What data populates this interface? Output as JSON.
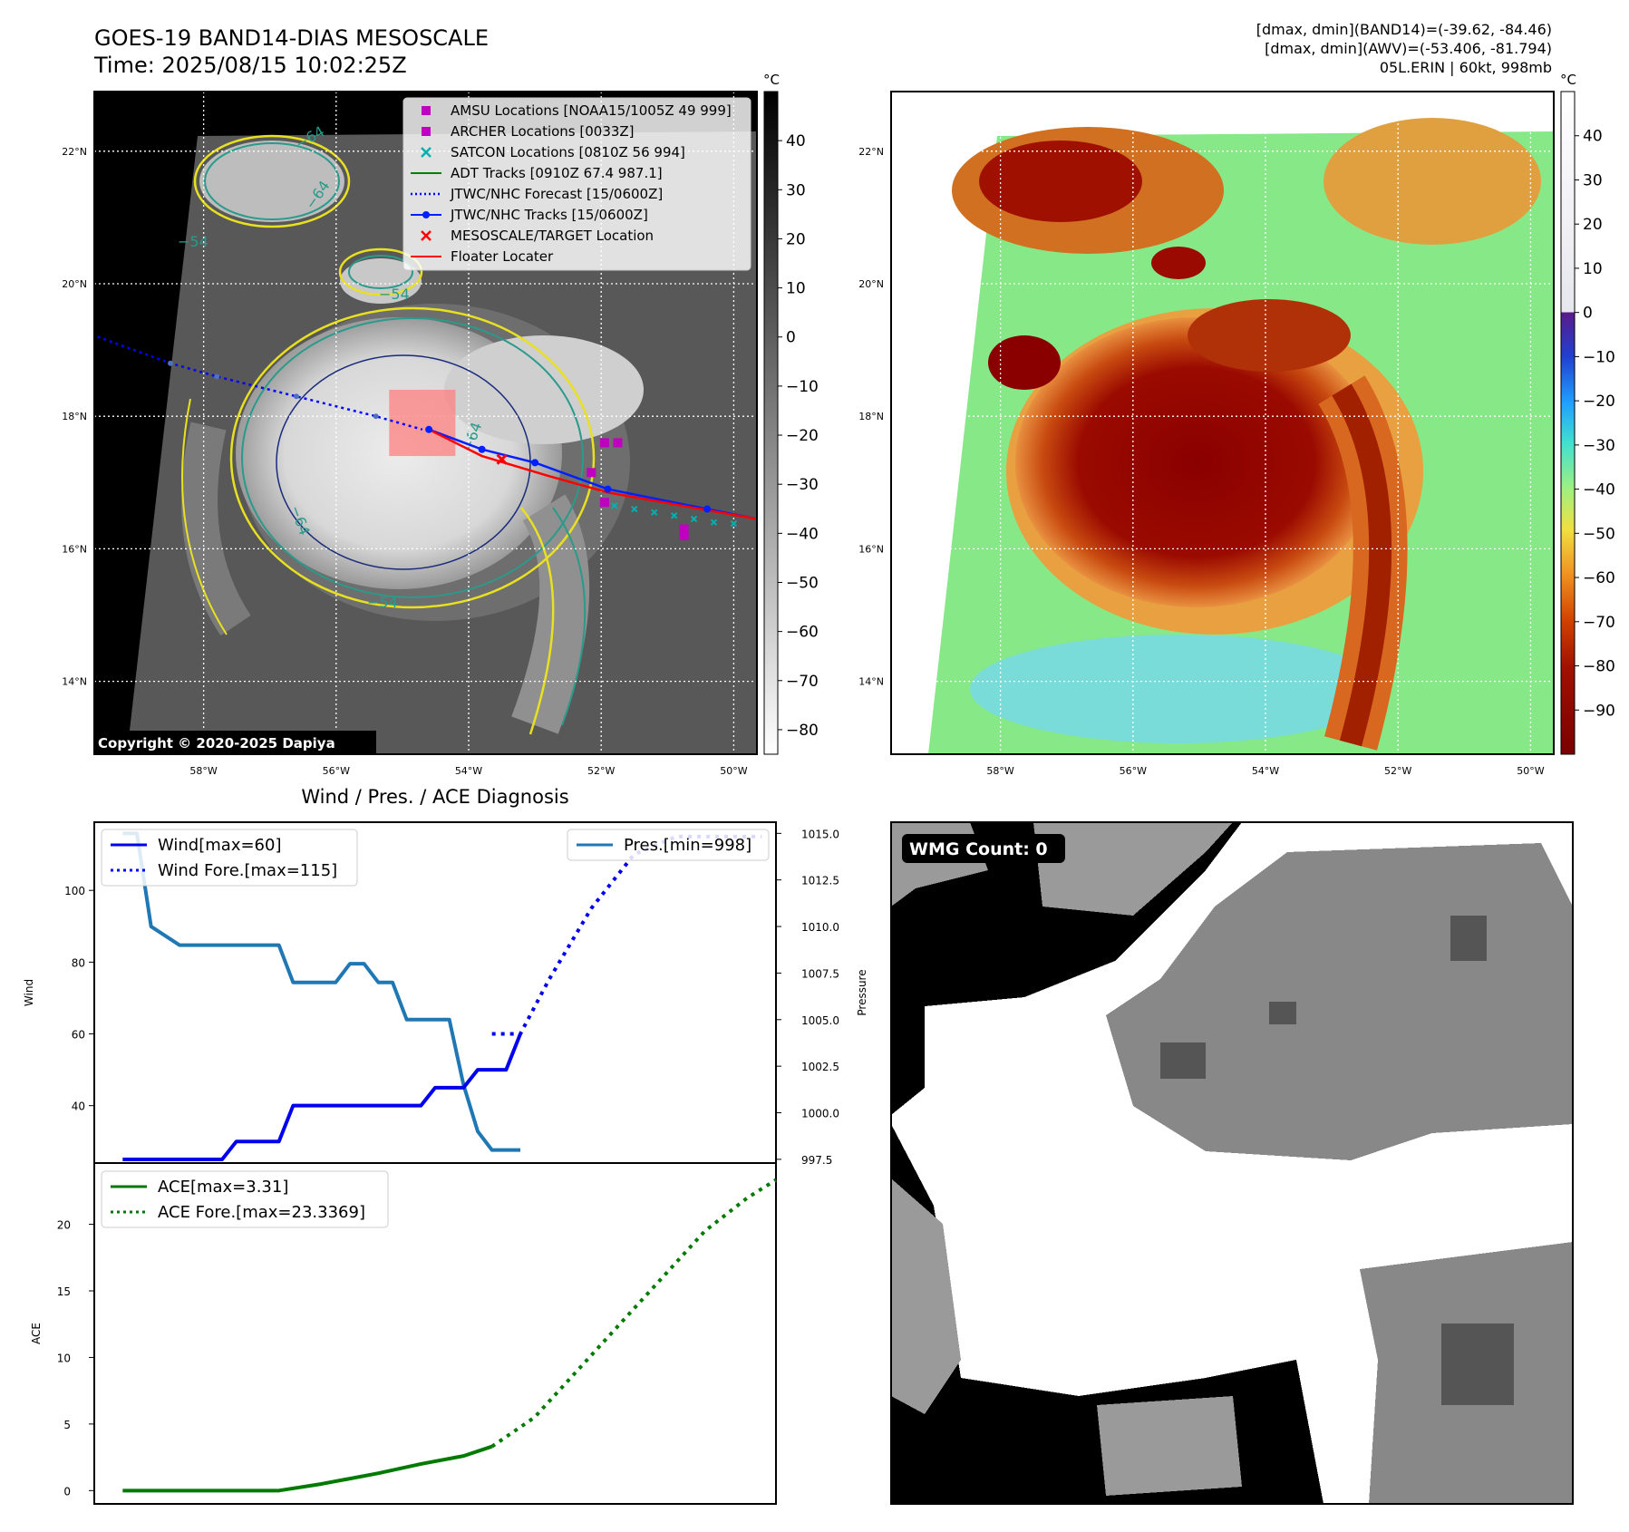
{
  "header": {
    "title": "GOES-19 BAND14-DIAS MESOSCALE",
    "time": "Time: 2025/08/15 10:02:25Z",
    "info_lines": [
      "[dmax, dmin](BAND14)=(-39.62, -84.46)",
      "[dmax, dmin](AWV)=(-53.406, -81.794)",
      "05L.ERIN | 60kt, 998mb"
    ]
  },
  "colors": {
    "wind": "#0000ee",
    "pressure": "#1f77b4",
    "ace": "#007a00",
    "contour_yellow": "#e8e020",
    "contour_teal": "#2a9a8a",
    "contour_navy": "#1a2a7a",
    "amsu": "#c000c0",
    "satcon": "#00b0b0",
    "jtwc_track": "#0020ff",
    "floater": "#ff0000"
  },
  "map_axes": {
    "lat_labels": [
      "22°N",
      "20°N",
      "18°N",
      "16°N",
      "14°N"
    ],
    "lon_labels": [
      "58°W",
      "56°W",
      "54°W",
      "52°W",
      "50°W"
    ],
    "lat_values": [
      22,
      20,
      18,
      16,
      14
    ],
    "lon_values": [
      -58,
      -56,
      -54,
      -52,
      -50
    ],
    "lat_range": [
      12.9,
      22.9
    ],
    "lon_range": [
      -59.65,
      -49.65
    ]
  },
  "ir_panel": {
    "colorbar_unit": "°C",
    "colorbar_ticks": [
      "40",
      "30",
      "20",
      "10",
      "0",
      "−10",
      "−20",
      "−30",
      "−40",
      "−50",
      "−60",
      "−70",
      "−80"
    ],
    "colorbar_values": [
      40,
      30,
      20,
      10,
      0,
      -10,
      -20,
      -30,
      -40,
      -50,
      -60,
      -70,
      -80
    ],
    "colorbar_range": [
      -85,
      50
    ],
    "contour_labels": [
      "−64",
      "−64",
      "−54",
      "−64",
      "−54",
      "−54",
      "−64"
    ],
    "copyright": "Copyright © 2020-2025 Dapiya",
    "legend": [
      {
        "label": "AMSU Locations [NOAA15/1005Z 49 999]",
        "marker": "square",
        "color": "#c000c0"
      },
      {
        "label": "ARCHER Locations [0033Z]",
        "marker": "square",
        "color": "#c000c0"
      },
      {
        "label": "SATCON Locations [0810Z 56 994]",
        "marker": "x",
        "color": "#00b0b0"
      },
      {
        "label": "ADT Tracks [0910Z 67.4 987.1]",
        "marker": "line",
        "color": "#008000"
      },
      {
        "label": "JTWC/NHC Forecast [15/0600Z]",
        "marker": "dotted",
        "color": "#0000ff"
      },
      {
        "label": "JTWC/NHC Tracks [15/0600Z]",
        "marker": "line-dot",
        "color": "#0020ff"
      },
      {
        "label": "MESOSCALE/TARGET Location",
        "marker": "x",
        "color": "#ff0000"
      },
      {
        "label": "Floater Locater",
        "marker": "line",
        "color": "#ff0000"
      }
    ],
    "jtwc_forecast_track": [
      [
        -59.6,
        19.2
      ],
      [
        -58.5,
        18.8
      ],
      [
        -57.8,
        18.6
      ],
      [
        -56.6,
        18.3
      ],
      [
        -55.4,
        18.0
      ],
      [
        -54.7,
        17.8
      ]
    ],
    "jtwc_track": [
      [
        -54.6,
        17.8
      ],
      [
        -53.8,
        17.5
      ],
      [
        -53.0,
        17.3
      ],
      [
        -51.9,
        16.9
      ],
      [
        -50.4,
        16.6
      ],
      [
        -49.65,
        16.45
      ]
    ],
    "floater_track": [
      [
        -54.6,
        17.8
      ],
      [
        -53.8,
        17.4
      ],
      [
        -52.8,
        17.1
      ],
      [
        -51.9,
        16.85
      ],
      [
        -50.5,
        16.6
      ],
      [
        -49.65,
        16.45
      ]
    ],
    "satcon_points": [
      [
        -51.8,
        16.65
      ],
      [
        -51.5,
        16.6
      ],
      [
        -51.2,
        16.55
      ],
      [
        -50.9,
        16.5
      ],
      [
        -50.6,
        16.45
      ],
      [
        -50.3,
        16.4
      ],
      [
        -50.0,
        16.38
      ]
    ],
    "amsu_points": [
      [
        -51.95,
        17.6
      ],
      [
        -51.75,
        17.6
      ],
      [
        -52.15,
        17.15
      ],
      [
        -51.95,
        16.7
      ],
      [
        -50.75,
        16.3
      ],
      [
        -50.75,
        16.2
      ]
    ],
    "target": [
      -53.5,
      17.35
    ],
    "mesoscale_box": {
      "lon": [
        -55.2,
        -54.2
      ],
      "lat": [
        17.4,
        18.4
      ]
    }
  },
  "awv_panel": {
    "colorbar_unit": "°C",
    "colorbar_ticks": [
      "40",
      "30",
      "20",
      "10",
      "0",
      "−10",
      "−20",
      "−30",
      "−40",
      "−50",
      "−60",
      "−70",
      "−80",
      "−90"
    ],
    "colorbar_values": [
      40,
      30,
      20,
      10,
      0,
      -10,
      -20,
      -30,
      -40,
      -50,
      -60,
      -70,
      -80,
      -90
    ],
    "colorbar_range": [
      -100,
      50
    ]
  },
  "chart_data": [
    {
      "type": "line",
      "title": "Wind / Pres. / ACE Diagnosis",
      "xlim": [
        0,
        48
      ],
      "ylabel": "Wind",
      "ylim": [
        24,
        119
      ],
      "yticks": [
        40,
        60,
        80,
        100
      ],
      "y2label": "Pressure",
      "y2lim": [
        997.3,
        1015.6
      ],
      "y2ticks": [
        "1015.0",
        "1012.5",
        "1010.0",
        "1007.5",
        "1005.0",
        "1002.5",
        "1000.0",
        "997.5"
      ],
      "y2tick_values": [
        1015.0,
        1012.5,
        1010.0,
        1007.5,
        1005.0,
        1002.5,
        1000.0,
        997.5
      ],
      "legend_left": [
        "Wind[max=60]",
        "Wind Fore.[max=115]"
      ],
      "legend_right": [
        "Pres.[min=998]"
      ],
      "series": [
        {
          "name": "Wind[max=60]",
          "style": "solid",
          "x": [
            2,
            9,
            10,
            13,
            14,
            23,
            24,
            26,
            27,
            29,
            30
          ],
          "values": [
            25,
            25,
            30,
            30,
            40,
            40,
            45,
            45,
            50,
            50,
            60
          ]
        },
        {
          "name": "Wind Fore.[max=115]",
          "style": "dotted",
          "x": [
            28,
            30,
            32,
            35,
            38,
            41,
            44,
            47
          ],
          "values": [
            60,
            60,
            75,
            95,
            110,
            115,
            115,
            115
          ]
        },
        {
          "name": "Pres.[min=998]",
          "axis": "right",
          "style": "solid",
          "x": [
            2,
            3,
            4,
            6,
            13,
            14,
            17,
            18,
            19,
            20,
            21,
            22,
            23,
            25,
            26,
            27,
            28,
            30
          ],
          "values": [
            1015.0,
            1015.0,
            1010.0,
            1009.0,
            1009.0,
            1007.0,
            1007.0,
            1008.0,
            1008.0,
            1007.0,
            1007.0,
            1005.0,
            1005.0,
            1005.0,
            1001.5,
            999.0,
            998.0,
            998.0
          ]
        }
      ]
    },
    {
      "type": "line",
      "xlim": [
        0,
        48
      ],
      "ylabel": "ACE",
      "ylim": [
        -1,
        24.6
      ],
      "yticks": [
        0,
        5,
        10,
        15,
        20
      ],
      "legend": [
        "ACE[max=3.31]",
        "ACE Fore.[max=23.3369]"
      ],
      "series": [
        {
          "name": "ACE[max=3.31]",
          "style": "solid",
          "x": [
            2,
            13,
            16,
            20,
            23,
            26,
            28
          ],
          "values": [
            0,
            0,
            0.5,
            1.3,
            2.0,
            2.6,
            3.31
          ]
        },
        {
          "name": "ACE Fore.[max=23.3369]",
          "style": "dotted",
          "x": [
            28,
            31,
            34,
            37,
            40,
            43,
            46,
            48
          ],
          "values": [
            3.31,
            5.5,
            9.0,
            12.5,
            16.0,
            19.5,
            22.0,
            23.3369
          ]
        }
      ]
    }
  ],
  "wmg_panel": {
    "label": "WMG Count: 0"
  }
}
